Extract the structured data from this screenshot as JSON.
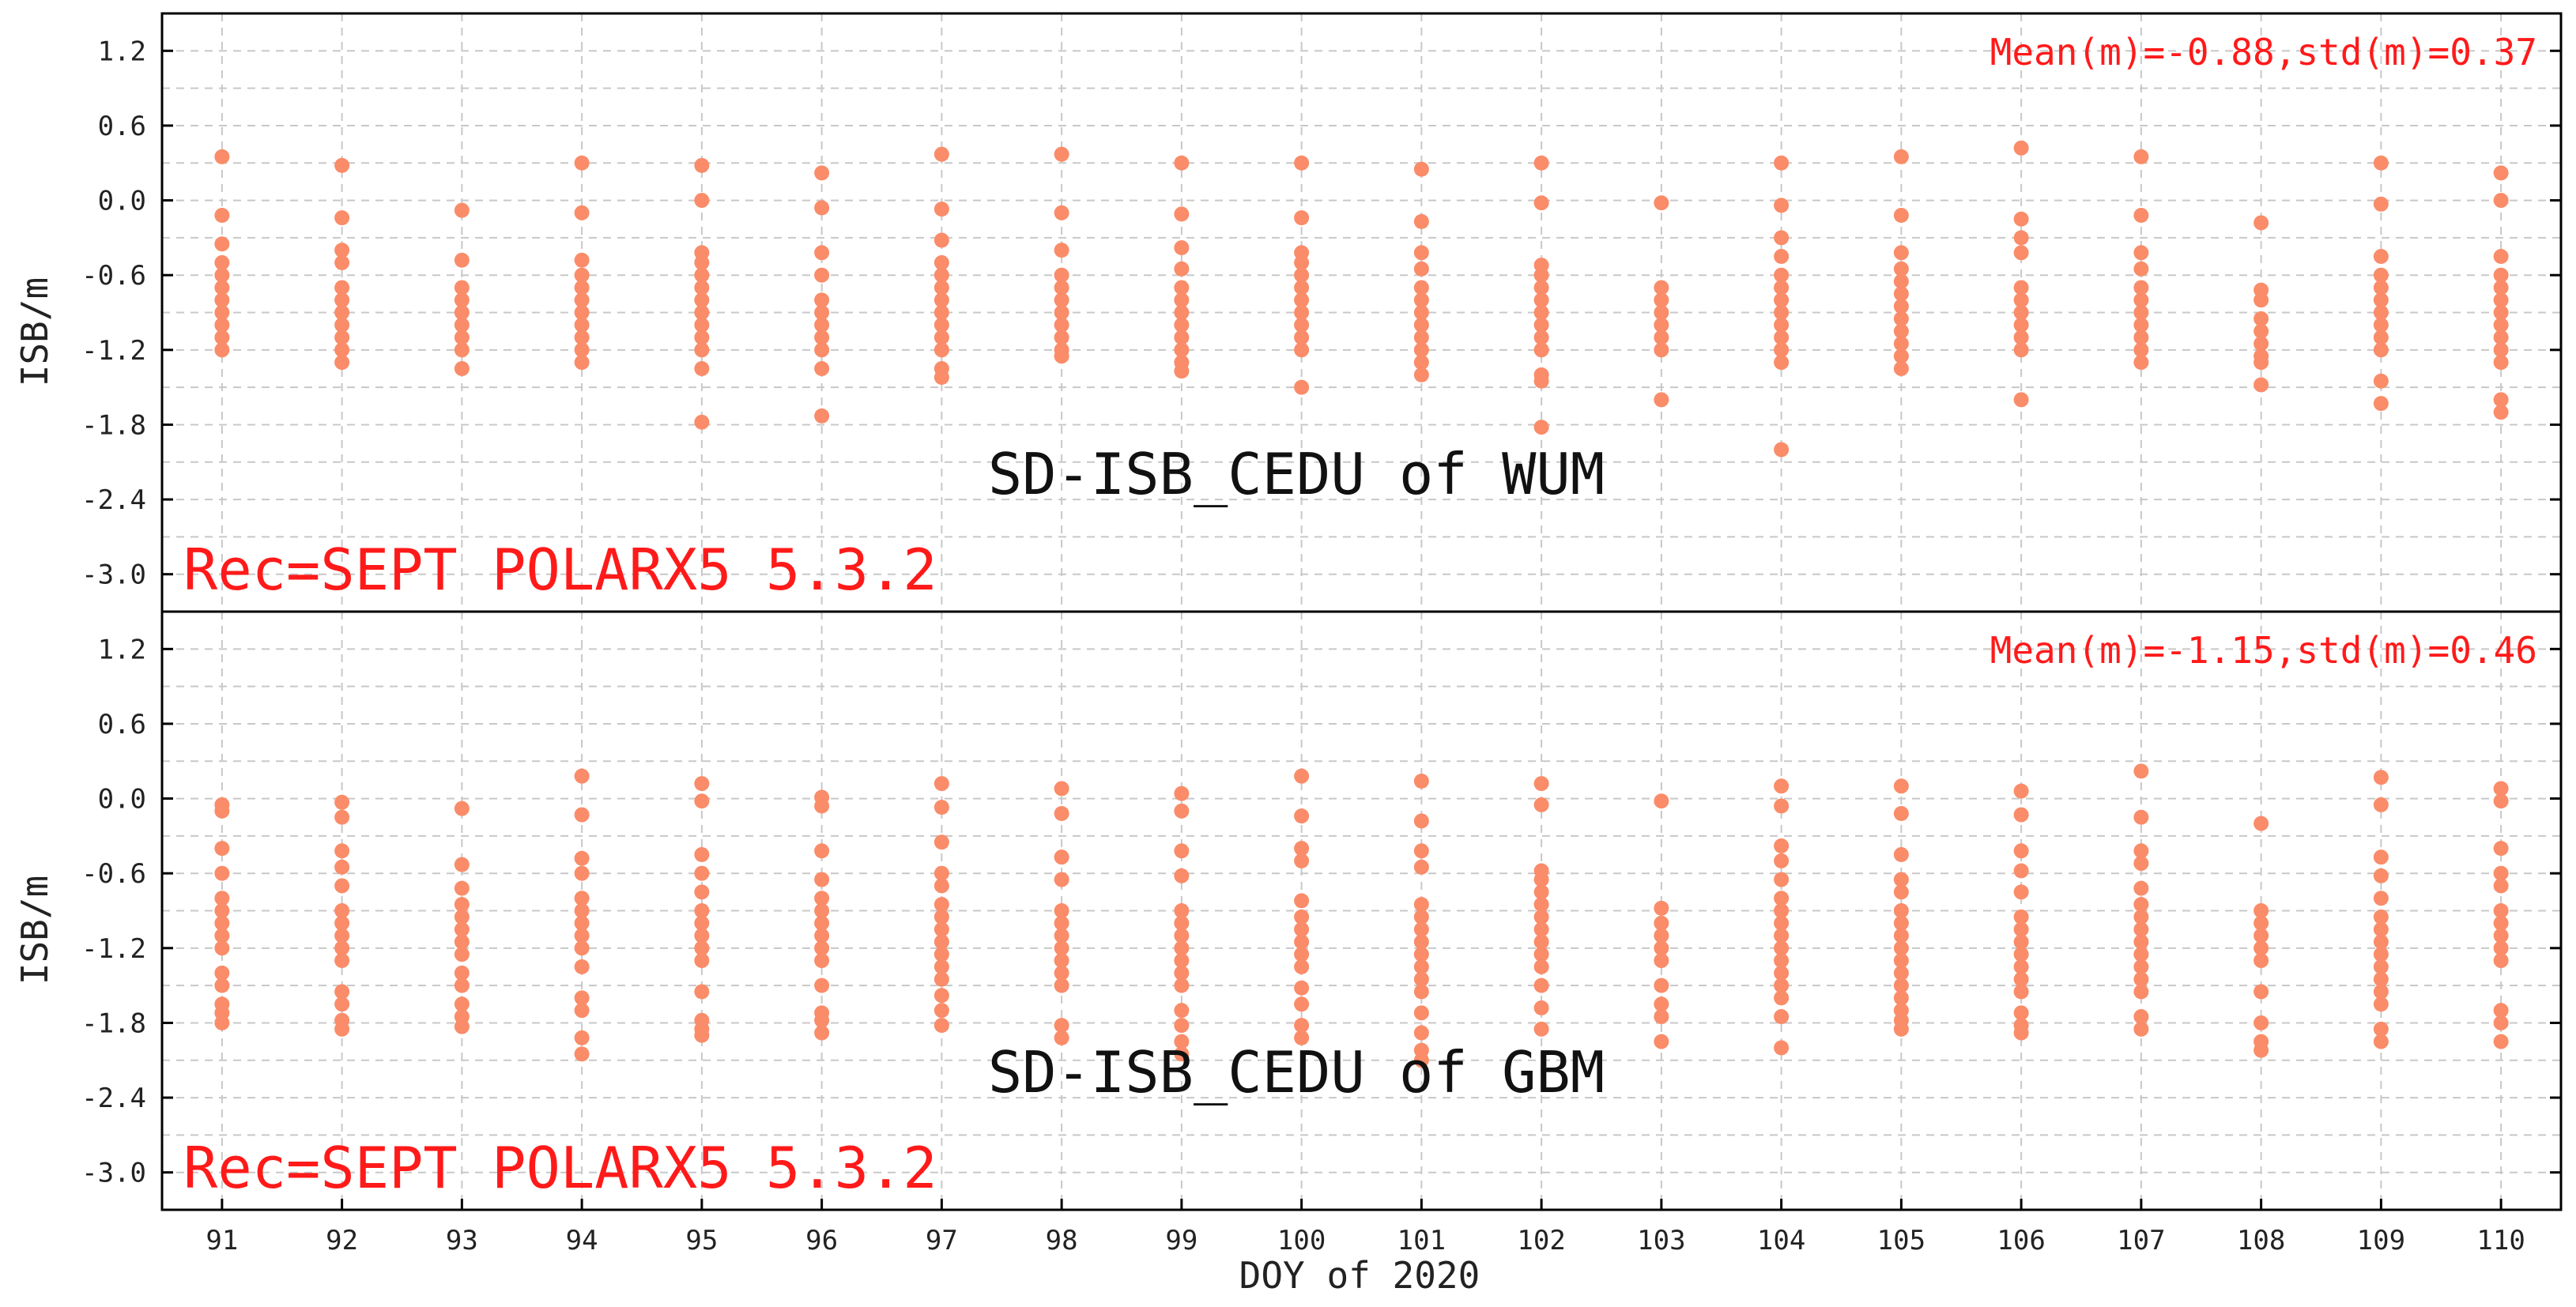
{
  "colors": {
    "point": "#fa8c69",
    "annotation": "#ff1a1a",
    "text": "#222222",
    "grid": "#c8c8c8"
  },
  "chart_data": {
    "type": "scatter",
    "xlabel": "DOY of 2020",
    "xlim": [
      90.5,
      110.5
    ],
    "x_ticks": [
      91,
      92,
      93,
      94,
      95,
      96,
      97,
      98,
      99,
      100,
      101,
      102,
      103,
      104,
      105,
      106,
      107,
      108,
      109,
      110
    ],
    "panels": [
      {
        "id": "wum",
        "title": "SD-ISB_CEDU of WUM",
        "receiver": "Rec=SEPT POLARX5 5.3.2",
        "stats": "Mean(m)=-0.88,std(m)=0.37",
        "ylabel": "ISB/m",
        "ylim": [
          -3.3,
          1.5
        ],
        "y_ticks": [
          "1.2",
          "0.6",
          "0.0",
          "-0.6",
          "-1.2",
          "-1.8",
          "-2.4",
          "-3.0"
        ],
        "series": [
          {
            "x": 91,
            "y": [
              0.35,
              -0.12,
              -0.35,
              -0.5,
              -0.6,
              -0.7,
              -0.8,
              -0.9,
              -1.0,
              -1.1,
              -1.2
            ]
          },
          {
            "x": 92,
            "y": [
              0.28,
              -0.14,
              -0.4,
              -0.5,
              -0.7,
              -0.8,
              -0.9,
              -1.0,
              -1.1,
              -1.2,
              -1.3
            ]
          },
          {
            "x": 93,
            "y": [
              -0.08,
              -0.48,
              -0.7,
              -0.8,
              -0.9,
              -1.0,
              -1.1,
              -1.2,
              -1.35
            ]
          },
          {
            "x": 94,
            "y": [
              0.3,
              -0.1,
              -0.48,
              -0.6,
              -0.7,
              -0.8,
              -0.9,
              -1.0,
              -1.1,
              -1.2,
              -1.3
            ]
          },
          {
            "x": 95,
            "y": [
              0.28,
              0.0,
              -0.42,
              -0.5,
              -0.6,
              -0.7,
              -0.8,
              -0.9,
              -1.0,
              -1.1,
              -1.2,
              -1.35,
              -1.78
            ]
          },
          {
            "x": 96,
            "y": [
              0.22,
              -0.06,
              -0.42,
              -0.6,
              -0.8,
              -0.9,
              -1.0,
              -1.1,
              -1.2,
              -1.35,
              -1.73
            ]
          },
          {
            "x": 97,
            "y": [
              0.37,
              -0.07,
              -0.32,
              -0.5,
              -0.6,
              -0.7,
              -0.8,
              -0.9,
              -1.0,
              -1.1,
              -1.2,
              -1.35,
              -1.42
            ]
          },
          {
            "x": 98,
            "y": [
              0.37,
              -0.1,
              -0.4,
              -0.6,
              -0.7,
              -0.8,
              -0.9,
              -1.0,
              -1.1,
              -1.2,
              -1.25
            ]
          },
          {
            "x": 99,
            "y": [
              0.3,
              -0.11,
              -0.38,
              -0.55,
              -0.7,
              -0.8,
              -0.9,
              -1.0,
              -1.1,
              -1.2,
              -1.3,
              -1.37
            ]
          },
          {
            "x": 100,
            "y": [
              0.3,
              -0.14,
              -0.42,
              -0.5,
              -0.6,
              -0.7,
              -0.8,
              -0.9,
              -1.0,
              -1.1,
              -1.2,
              -1.5
            ]
          },
          {
            "x": 101,
            "y": [
              0.25,
              -0.17,
              -0.42,
              -0.55,
              -0.7,
              -0.8,
              -0.9,
              -1.0,
              -1.1,
              -1.2,
              -1.3,
              -1.4
            ]
          },
          {
            "x": 102,
            "y": [
              0.3,
              -0.02,
              -0.52,
              -0.6,
              -0.7,
              -0.8,
              -0.9,
              -1.0,
              -1.1,
              -1.2,
              -1.4,
              -1.45,
              -1.82
            ]
          },
          {
            "x": 103,
            "y": [
              -0.02,
              -0.7,
              -0.8,
              -0.9,
              -1.0,
              -1.1,
              -1.2,
              -1.6
            ]
          },
          {
            "x": 104,
            "y": [
              0.3,
              -0.04,
              -0.3,
              -0.45,
              -0.6,
              -0.7,
              -0.8,
              -0.9,
              -1.0,
              -1.1,
              -1.2,
              -1.3,
              -2.0
            ]
          },
          {
            "x": 105,
            "y": [
              0.35,
              -0.12,
              -0.42,
              -0.55,
              -0.65,
              -0.75,
              -0.85,
              -0.95,
              -1.05,
              -1.15,
              -1.25,
              -1.35
            ]
          },
          {
            "x": 106,
            "y": [
              0.42,
              -0.15,
              -0.3,
              -0.42,
              -0.7,
              -0.8,
              -0.9,
              -1.0,
              -1.1,
              -1.2,
              -1.6
            ]
          },
          {
            "x": 107,
            "y": [
              0.35,
              -0.12,
              -0.42,
              -0.55,
              -0.7,
              -0.8,
              -0.9,
              -1.0,
              -1.1,
              -1.2,
              -1.3
            ]
          },
          {
            "x": 108,
            "y": [
              -0.18,
              -0.72,
              -0.8,
              -0.95,
              -1.05,
              -1.15,
              -1.25,
              -1.3,
              -1.48
            ]
          },
          {
            "x": 109,
            "y": [
              0.3,
              -0.03,
              -0.45,
              -0.6,
              -0.7,
              -0.8,
              -0.9,
              -1.0,
              -1.1,
              -1.2,
              -1.45,
              -1.63
            ]
          },
          {
            "x": 110,
            "y": [
              0.22,
              0.0,
              -0.45,
              -0.6,
              -0.7,
              -0.8,
              -0.9,
              -1.0,
              -1.1,
              -1.2,
              -1.3,
              -1.6,
              -1.7
            ]
          }
        ]
      },
      {
        "id": "gbm",
        "title": "SD-ISB_CEDU of GBM",
        "receiver": "Rec=SEPT POLARX5 5.3.2",
        "stats": "Mean(m)=-1.15,std(m)=0.46",
        "ylabel": "ISB/m",
        "ylim": [
          -3.3,
          1.5
        ],
        "y_ticks": [
          "1.2",
          "0.6",
          "0.0",
          "-0.6",
          "-1.2",
          "-1.8",
          "-2.4",
          "-3.0"
        ],
        "series": [
          {
            "x": 91,
            "y": [
              -0.05,
              -0.1,
              -0.4,
              -0.6,
              -0.8,
              -0.9,
              -1.0,
              -1.1,
              -1.2,
              -1.4,
              -1.5,
              -1.65,
              -1.72,
              -1.8
            ]
          },
          {
            "x": 92,
            "y": [
              -0.03,
              -0.15,
              -0.42,
              -0.55,
              -0.7,
              -0.9,
              -1.0,
              -1.1,
              -1.2,
              -1.3,
              -1.55,
              -1.65,
              -1.78,
              -1.85
            ]
          },
          {
            "x": 93,
            "y": [
              -0.08,
              -0.53,
              -0.72,
              -0.85,
              -0.95,
              -1.05,
              -1.15,
              -1.25,
              -1.4,
              -1.5,
              -1.65,
              -1.75,
              -1.83
            ]
          },
          {
            "x": 94,
            "y": [
              0.18,
              -0.13,
              -0.48,
              -0.6,
              -0.8,
              -0.9,
              -1.0,
              -1.1,
              -1.2,
              -1.35,
              -1.6,
              -1.7,
              -1.92,
              -2.05
            ]
          },
          {
            "x": 95,
            "y": [
              0.12,
              -0.02,
              -0.45,
              -0.6,
              -0.75,
              -0.9,
              -1.0,
              -1.1,
              -1.2,
              -1.3,
              -1.55,
              -1.78,
              -1.85,
              -1.9
            ]
          },
          {
            "x": 96,
            "y": [
              0.01,
              -0.06,
              -0.42,
              -0.65,
              -0.8,
              -0.9,
              -1.0,
              -1.1,
              -1.2,
              -1.3,
              -1.5,
              -1.72,
              -1.78,
              -1.88
            ]
          },
          {
            "x": 97,
            "y": [
              0.12,
              -0.07,
              -0.35,
              -0.6,
              -0.7,
              -0.85,
              -0.95,
              -1.05,
              -1.15,
              -1.25,
              -1.35,
              -1.45,
              -1.58,
              -1.7,
              -1.82
            ]
          },
          {
            "x": 98,
            "y": [
              0.08,
              -0.12,
              -0.47,
              -0.65,
              -0.9,
              -1.0,
              -1.1,
              -1.2,
              -1.3,
              -1.4,
              -1.5,
              -1.82,
              -1.92
            ]
          },
          {
            "x": 99,
            "y": [
              0.04,
              -0.1,
              -0.42,
              -0.62,
              -0.9,
              -1.0,
              -1.1,
              -1.2,
              -1.3,
              -1.4,
              -1.5,
              -1.7,
              -1.82,
              -1.95,
              -2.05
            ]
          },
          {
            "x": 100,
            "y": [
              0.18,
              -0.14,
              -0.4,
              -0.5,
              -0.82,
              -0.95,
              -1.05,
              -1.15,
              -1.25,
              -1.35,
              -1.52,
              -1.65,
              -1.82,
              -1.92
            ]
          },
          {
            "x": 101,
            "y": [
              0.14,
              -0.18,
              -0.42,
              -0.55,
              -0.85,
              -0.95,
              -1.05,
              -1.15,
              -1.25,
              -1.35,
              -1.45,
              -1.55,
              -1.72,
              -1.88,
              -2.02,
              -2.1
            ]
          },
          {
            "x": 102,
            "y": [
              0.12,
              -0.05,
              -0.58,
              -0.65,
              -0.75,
              -0.85,
              -0.95,
              -1.05,
              -1.15,
              -1.25,
              -1.35,
              -1.5,
              -1.68,
              -1.85
            ]
          },
          {
            "x": 103,
            "y": [
              -0.02,
              -0.88,
              -1.0,
              -1.1,
              -1.2,
              -1.3,
              -1.5,
              -1.65,
              -1.75,
              -1.95
            ]
          },
          {
            "x": 104,
            "y": [
              0.1,
              -0.06,
              -0.38,
              -0.5,
              -0.65,
              -0.8,
              -0.9,
              -1.0,
              -1.1,
              -1.2,
              -1.3,
              -1.4,
              -1.5,
              -1.6,
              -1.75,
              -2.0
            ]
          },
          {
            "x": 105,
            "y": [
              0.1,
              -0.12,
              -0.45,
              -0.65,
              -0.75,
              -0.9,
              -1.0,
              -1.1,
              -1.2,
              -1.3,
              -1.4,
              -1.5,
              -1.6,
              -1.7,
              -1.78,
              -1.85
            ]
          },
          {
            "x": 106,
            "y": [
              0.06,
              -0.13,
              -0.42,
              -0.58,
              -0.75,
              -0.95,
              -1.05,
              -1.15,
              -1.25,
              -1.35,
              -1.45,
              -1.55,
              -1.72,
              -1.82,
              -1.88
            ]
          },
          {
            "x": 107,
            "y": [
              0.22,
              -0.15,
              -0.42,
              -0.52,
              -0.72,
              -0.85,
              -0.95,
              -1.05,
              -1.15,
              -1.25,
              -1.35,
              -1.45,
              -1.55,
              -1.75,
              -1.85
            ]
          },
          {
            "x": 108,
            "y": [
              -0.2,
              -0.9,
              -1.0,
              -1.1,
              -1.2,
              -1.3,
              -1.55,
              -1.8,
              -1.95,
              -2.02
            ]
          },
          {
            "x": 109,
            "y": [
              0.17,
              -0.05,
              -0.47,
              -0.62,
              -0.8,
              -0.95,
              -1.05,
              -1.15,
              -1.25,
              -1.35,
              -1.45,
              -1.55,
              -1.65,
              -1.85,
              -1.95
            ]
          },
          {
            "x": 110,
            "y": [
              0.08,
              -0.02,
              -0.4,
              -0.6,
              -0.7,
              -0.9,
              -1.0,
              -1.1,
              -1.2,
              -1.3,
              -1.7,
              -1.8,
              -1.95
            ]
          }
        ]
      }
    ]
  }
}
